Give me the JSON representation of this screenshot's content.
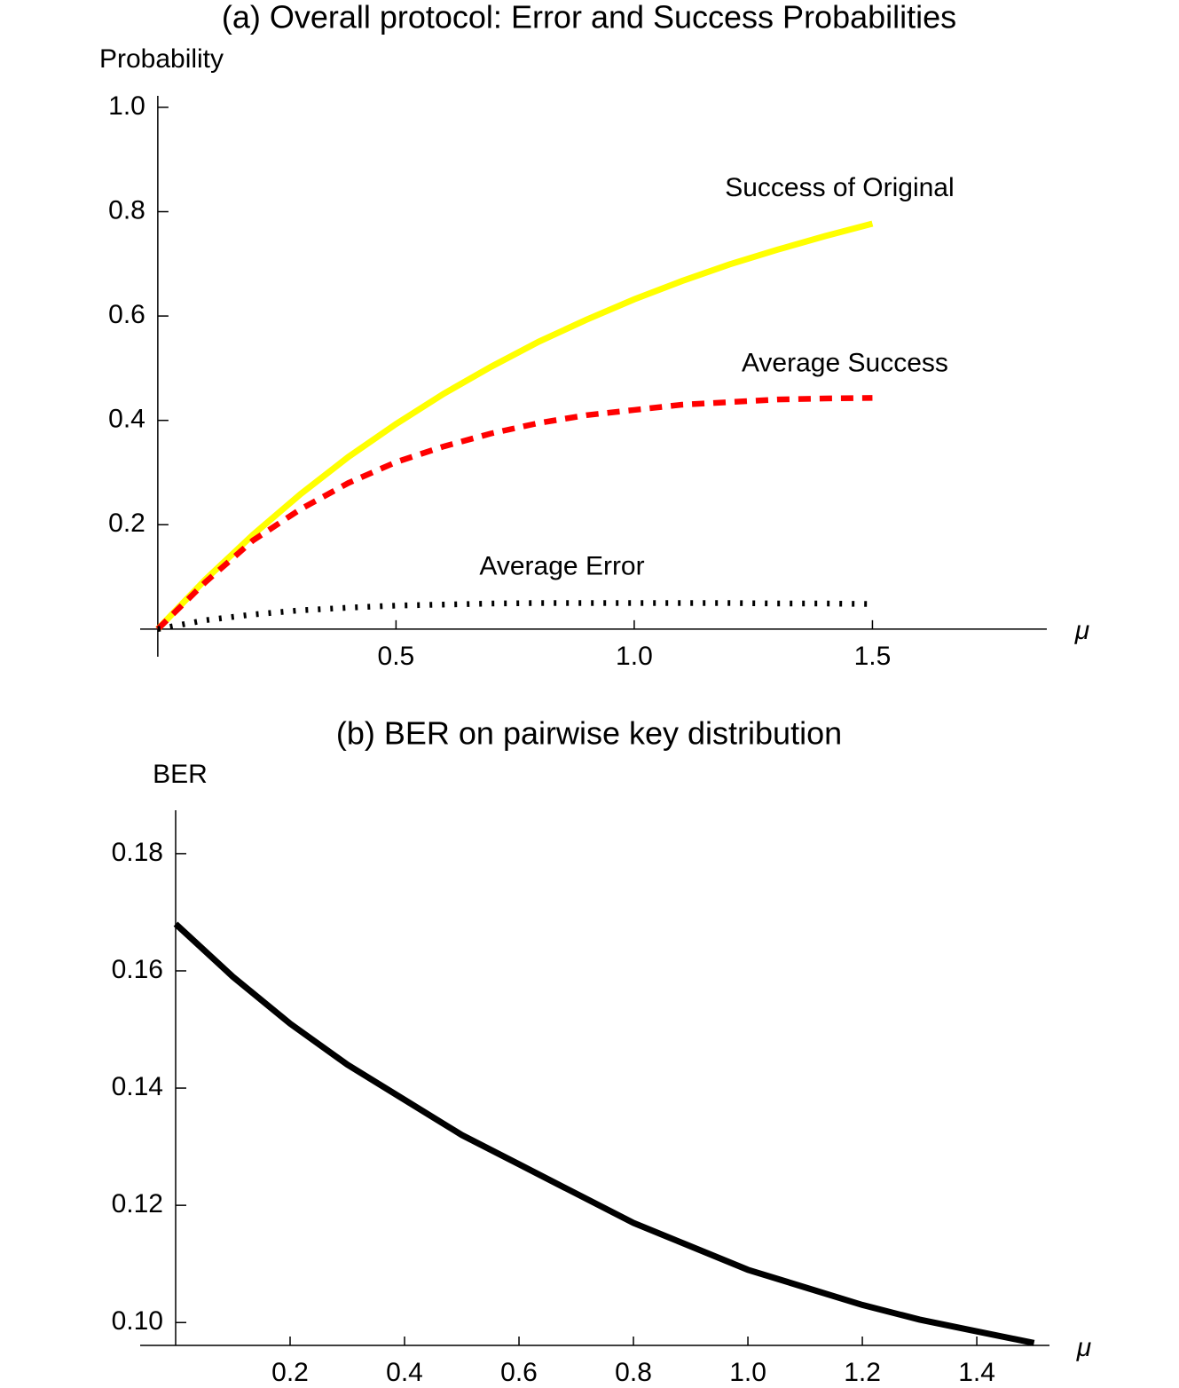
{
  "chart_data": [
    {
      "type": "line",
      "title": "(a) Overall protocol: Error and Success Probabilities",
      "y_label": "Probability",
      "x_label": "μ",
      "x": [
        0,
        0.1,
        0.2,
        0.3,
        0.4,
        0.5,
        0.6,
        0.7,
        0.8,
        0.9,
        1.0,
        1.1,
        1.2,
        1.3,
        1.4,
        1.5
      ],
      "series": [
        {
          "name": "Success of Original",
          "color": "#ffff00",
          "style": "solid",
          "values": [
            0,
            0.095,
            0.181,
            0.259,
            0.33,
            0.393,
            0.451,
            0.503,
            0.551,
            0.593,
            0.632,
            0.667,
            0.699,
            0.727,
            0.753,
            0.777
          ]
        },
        {
          "name": "Average Success",
          "color": "#ff0000",
          "style": "dashed",
          "values": [
            0,
            0.09,
            0.17,
            0.23,
            0.28,
            0.32,
            0.35,
            0.375,
            0.395,
            0.41,
            0.42,
            0.43,
            0.435,
            0.44,
            0.442,
            0.443
          ]
        },
        {
          "name": "Average Error",
          "color": "#000000",
          "style": "dotted",
          "values": [
            0,
            0.017,
            0.028,
            0.036,
            0.041,
            0.045,
            0.047,
            0.049,
            0.05,
            0.05,
            0.05,
            0.05,
            0.05,
            0.049,
            0.049,
            0.048
          ]
        }
      ],
      "xlim": [
        -0.037,
        1.866
      ],
      "ylim": [
        -0.053,
        1.022
      ],
      "xticks": [
        0.5,
        {
          "value": 1,
          "label": "1.0"
        },
        1.5
      ],
      "yticks": [
        0.2,
        0.4,
        0.6,
        0.8,
        {
          "value": 1,
          "label": "1.0"
        }
      ]
    },
    {
      "type": "line",
      "title": "(b) BER on pairwise key distribution",
      "y_label": "BER",
      "x_label": "μ",
      "x": [
        0,
        0.1,
        0.2,
        0.3,
        0.4,
        0.5,
        0.6,
        0.7,
        0.8,
        0.9,
        1.0,
        1.1,
        1.2,
        1.3,
        1.4,
        1.5
      ],
      "series": [
        {
          "color": "#000000",
          "style": "solid",
          "values": [
            0.168,
            0.159,
            0.151,
            0.144,
            0.138,
            0.132,
            0.127,
            0.122,
            0.117,
            0.113,
            0.109,
            0.106,
            0.103,
            0.1005,
            0.0985,
            0.0965
          ]
        }
      ],
      "xlim": [
        -0.062,
        1.527
      ],
      "ylim": [
        0.0961,
        0.1874
      ],
      "xticks": [
        0.2,
        0.4,
        0.6,
        0.8,
        {
          "value": 1,
          "label": "1.0"
        },
        1.2,
        1.4
      ],
      "yticks": [
        {
          "value": 0.1,
          "label": "0.10"
        },
        0.12,
        0.14,
        0.16,
        0.18
      ]
    }
  ]
}
